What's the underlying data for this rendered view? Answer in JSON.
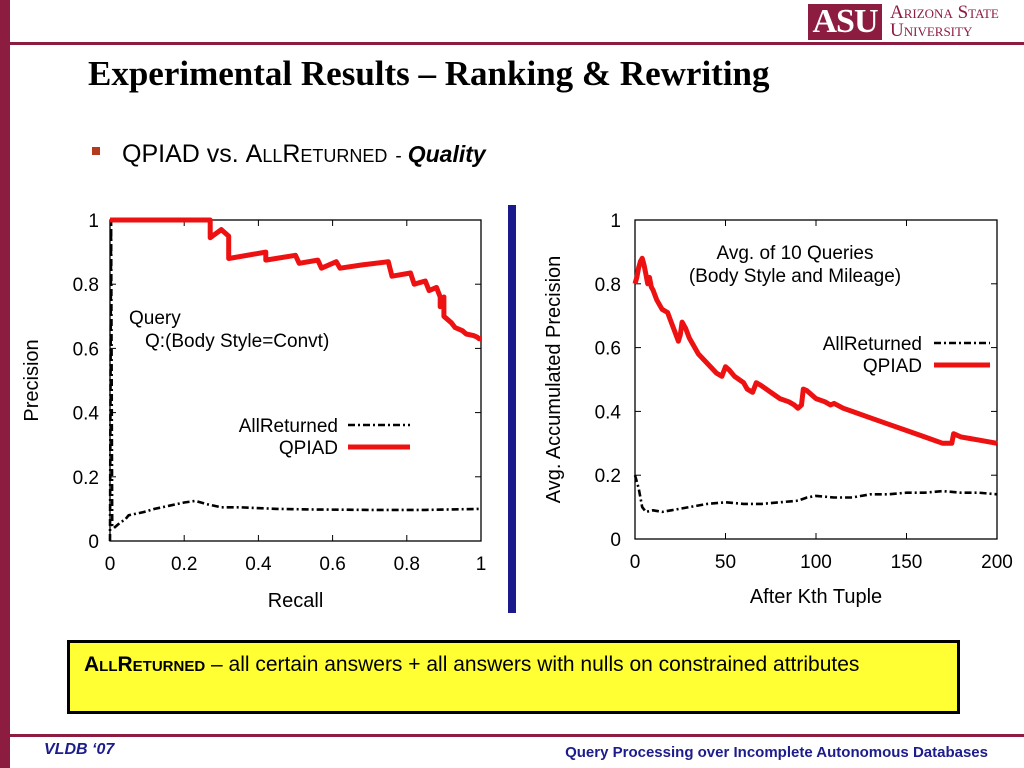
{
  "slide": {
    "title": "Experimental Results – Ranking & Rewriting",
    "bullet": {
      "qpiad": "QPIAD vs. ",
      "allreturned": "AllReturned",
      "dash": "-",
      "quality": "Quality"
    },
    "logo": {
      "mark": "ASU",
      "line1": "Arizona State",
      "line2": "University"
    },
    "note": {
      "term": "AllReturned",
      "definition": "– all certain answers + all answers with nulls on constrained attributes"
    },
    "footer_left": "VLDB ‘07",
    "footer_right": "Query Processing over Incomplete Autonomous Databases",
    "colors": {
      "brand": "#8c1d40",
      "divider": "#1a1a8c",
      "note_bg": "#ffff33",
      "qpiad": "#ee1111",
      "allreturned": "#000000"
    }
  },
  "chart_data": [
    {
      "type": "line",
      "xlabel": "Recall",
      "ylabel": "Precision",
      "xlim": [
        0,
        1
      ],
      "ylim": [
        0,
        1
      ],
      "xticks": [
        "0",
        "0.2",
        "0.4",
        "0.6",
        "0.8",
        "1"
      ],
      "yticks": [
        "0",
        "0.2",
        "0.4",
        "0.6",
        "0.8",
        "1"
      ],
      "annotation": [
        "Query",
        "Q:(Body Style=Convt)"
      ],
      "legend": "right-middle",
      "series": [
        {
          "name": "AllReturned",
          "style": "dash-dot",
          "color": "#000000",
          "x": [
            0,
            0.003,
            0.006,
            0.01,
            0.02,
            0.03,
            0.04,
            0.05,
            0.07,
            0.09,
            0.12,
            0.16,
            0.2,
            0.23,
            0.26,
            0.3,
            0.35,
            0.45,
            0.55,
            0.7,
            0.85,
            1
          ],
          "y": [
            0,
            1,
            0.05,
            0.04,
            0.05,
            0.06,
            0.065,
            0.08,
            0.085,
            0.09,
            0.1,
            0.11,
            0.12,
            0.125,
            0.115,
            0.105,
            0.105,
            0.1,
            0.098,
            0.097,
            0.097,
            0.1
          ]
        },
        {
          "name": "QPIAD",
          "style": "solid",
          "color": "#ee1111",
          "x": [
            0,
            0.27,
            0.27,
            0.3,
            0.32,
            0.32,
            0.42,
            0.42,
            0.5,
            0.51,
            0.56,
            0.57,
            0.61,
            0.62,
            0.68,
            0.75,
            0.76,
            0.81,
            0.82,
            0.85,
            0.86,
            0.88,
            0.89,
            0.89,
            0.9,
            0.9,
            0.92,
            0.93,
            0.95,
            0.96,
            0.98,
            0.99,
            0.995,
            1
          ],
          "y": [
            1,
            1,
            0.945,
            0.97,
            0.95,
            0.88,
            0.9,
            0.875,
            0.89,
            0.865,
            0.875,
            0.85,
            0.87,
            0.85,
            0.86,
            0.87,
            0.825,
            0.835,
            0.8,
            0.81,
            0.78,
            0.79,
            0.76,
            0.73,
            0.76,
            0.7,
            0.68,
            0.665,
            0.655,
            0.645,
            0.64,
            0.635,
            0.63,
            0.63
          ]
        }
      ]
    },
    {
      "type": "line",
      "xlabel": "After Kth Tuple",
      "ylabel": "Avg. Accumulated Precision",
      "xlim": [
        0,
        200
      ],
      "ylim": [
        0,
        1
      ],
      "xticks": [
        "0",
        "50",
        "100",
        "150",
        "200"
      ],
      "yticks": [
        "0",
        "0.2",
        "0.4",
        "0.6",
        "0.8",
        "1"
      ],
      "annotation": [
        "Avg. of 10 Queries",
        "(Body Style and Mileage)"
      ],
      "legend": "top-right",
      "series": [
        {
          "name": "AllReturned",
          "style": "dash-dot",
          "color": "#000000",
          "x": [
            0,
            2,
            4,
            6,
            10,
            15,
            20,
            30,
            40,
            50,
            60,
            70,
            80,
            90,
            95,
            100,
            110,
            120,
            130,
            140,
            150,
            160,
            170,
            180,
            190,
            200
          ],
          "y": [
            0.2,
            0.16,
            0.1,
            0.085,
            0.09,
            0.085,
            0.09,
            0.1,
            0.11,
            0.115,
            0.11,
            0.11,
            0.115,
            0.12,
            0.13,
            0.135,
            0.13,
            0.13,
            0.14,
            0.14,
            0.145,
            0.145,
            0.15,
            0.145,
            0.145,
            0.14
          ]
        },
        {
          "name": "QPIAD",
          "style": "solid",
          "color": "#ee1111",
          "x": [
            0,
            1,
            2,
            3,
            4,
            5,
            6,
            7,
            8,
            9,
            10,
            12,
            15,
            18,
            20,
            22,
            24,
            25,
            26,
            28,
            30,
            35,
            40,
            45,
            48,
            50,
            52,
            55,
            60,
            62,
            65,
            67,
            70,
            75,
            80,
            85,
            88,
            90,
            92,
            93,
            95,
            100,
            105,
            108,
            110,
            115,
            120,
            130,
            140,
            150,
            160,
            170,
            175,
            176,
            178,
            180,
            185,
            190,
            195,
            200
          ],
          "y": [
            0.8,
            0.82,
            0.85,
            0.87,
            0.88,
            0.86,
            0.83,
            0.8,
            0.82,
            0.79,
            0.78,
            0.75,
            0.72,
            0.71,
            0.68,
            0.65,
            0.62,
            0.64,
            0.68,
            0.66,
            0.63,
            0.58,
            0.55,
            0.52,
            0.51,
            0.54,
            0.53,
            0.51,
            0.49,
            0.47,
            0.46,
            0.49,
            0.48,
            0.46,
            0.44,
            0.43,
            0.42,
            0.41,
            0.42,
            0.47,
            0.465,
            0.44,
            0.43,
            0.42,
            0.425,
            0.41,
            0.4,
            0.38,
            0.36,
            0.34,
            0.32,
            0.3,
            0.3,
            0.33,
            0.325,
            0.32,
            0.315,
            0.31,
            0.305,
            0.3
          ]
        }
      ]
    }
  ]
}
